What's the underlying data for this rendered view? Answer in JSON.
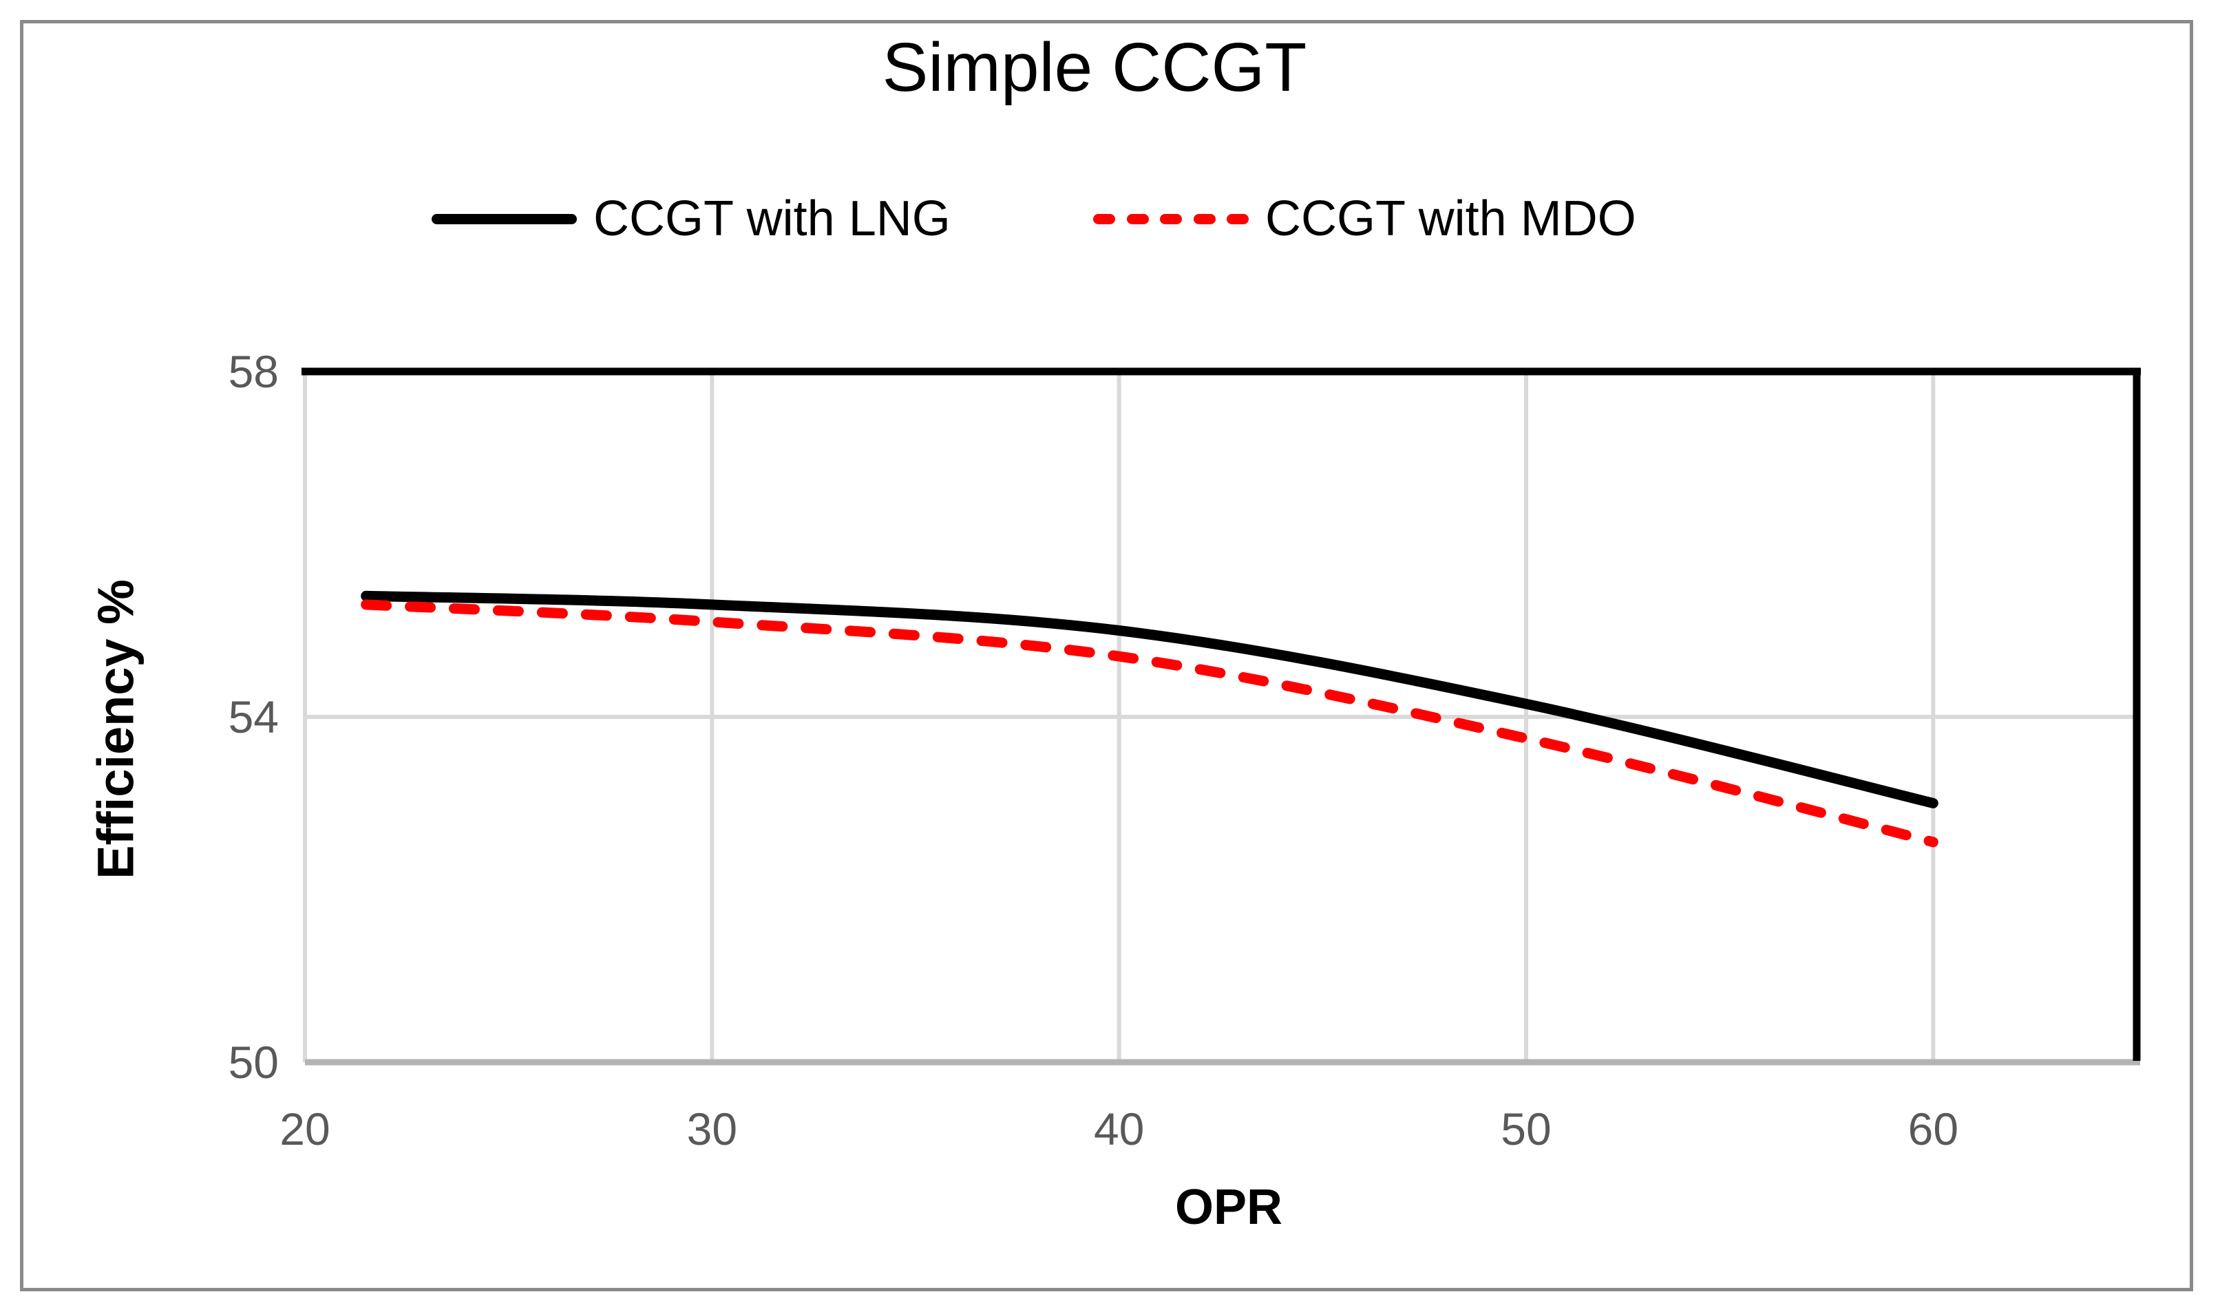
{
  "title": "Simple CCGT",
  "axes": {
    "y_title": "Efficiency %",
    "x_title": "OPR"
  },
  "colors": {
    "background": "#ffffff",
    "frame_border": "#8a8a8a",
    "gridline": "#d9d9d9",
    "bottom_axis_line": "#b3b3b3",
    "plot_border": "#000000",
    "tick_label": "#595959",
    "series_lng": "#000000",
    "series_mdo": "#ff0000"
  },
  "chart_data": {
    "type": "line",
    "title": "Simple CCGT",
    "xlabel": "OPR",
    "ylabel": "Efficiency %",
    "xlim": [
      20,
      65
    ],
    "ylim": [
      50,
      58
    ],
    "x_ticks": [
      20,
      30,
      40,
      50,
      60
    ],
    "y_ticks": [
      50,
      54,
      58
    ],
    "grid": true,
    "legend_position": "top-center",
    "series": [
      {
        "name": "CCGT with LNG",
        "color": "#000000",
        "line_style": "solid",
        "points": [
          [
            21.5,
            55.4
          ],
          [
            30,
            55.3
          ],
          [
            40,
            55.0
          ],
          [
            50,
            54.15
          ],
          [
            60,
            53.0
          ]
        ]
      },
      {
        "name": "CCGT with MDO",
        "color": "#ff0000",
        "line_style": "dashed",
        "points": [
          [
            21.5,
            55.3
          ],
          [
            30,
            55.1
          ],
          [
            40,
            54.7
          ],
          [
            50,
            53.75
          ],
          [
            60,
            52.55
          ]
        ]
      }
    ]
  }
}
